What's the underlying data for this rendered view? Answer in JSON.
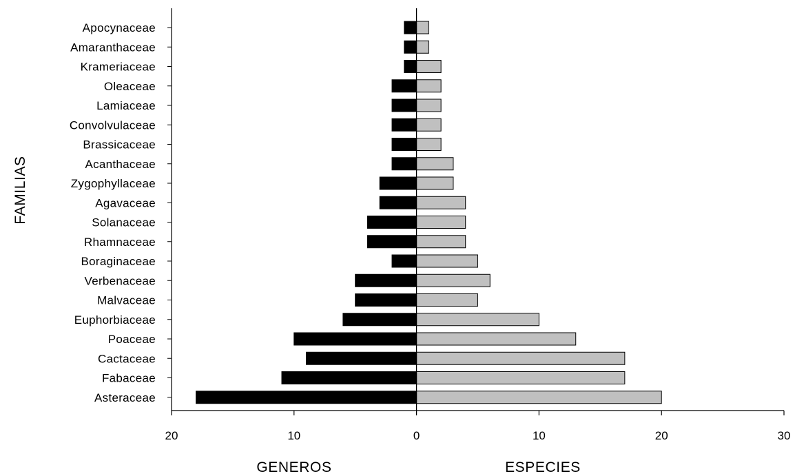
{
  "chart_data": {
    "type": "bar",
    "orientation": "horizontal",
    "layout": "population-pyramid",
    "title": "",
    "ylabel": "FAMILIAS",
    "xlabels": {
      "left": "GENEROS",
      "right": "ESPECIES"
    },
    "x_ticks": [
      "20",
      "10",
      "0",
      "10",
      "20",
      "30"
    ],
    "xlim": [
      -20,
      30
    ],
    "grid": false,
    "categories": [
      "Apocynaceae",
      "Amaranthaceae",
      "Krameriaceae",
      "Oleaceae",
      "Lamiaceae",
      "Convolvulaceae",
      "Brassicaceae",
      "Acanthaceae",
      "Zygophyllaceae",
      "Agavaceae",
      "Solanaceae",
      "Rhamnaceae",
      "Boraginaceae",
      "Verbenaceae",
      "Malvaceae",
      "Euphorbiaceae",
      "Poaceae",
      "Cactaceae",
      "Fabaceae",
      "Asteraceae"
    ],
    "series": [
      {
        "name": "GENEROS",
        "side": "left",
        "color": "#000000",
        "values": [
          1,
          1,
          1,
          2,
          2,
          2,
          2,
          2,
          3,
          3,
          4,
          4,
          2,
          5,
          5,
          6,
          10,
          9,
          11,
          18
        ]
      },
      {
        "name": "ESPECIES",
        "side": "right",
        "color": "#c0c0c0",
        "values": [
          1,
          1,
          2,
          2,
          2,
          2,
          2,
          3,
          3,
          4,
          4,
          4,
          5,
          6,
          5,
          10,
          13,
          17,
          17,
          20
        ]
      }
    ]
  }
}
